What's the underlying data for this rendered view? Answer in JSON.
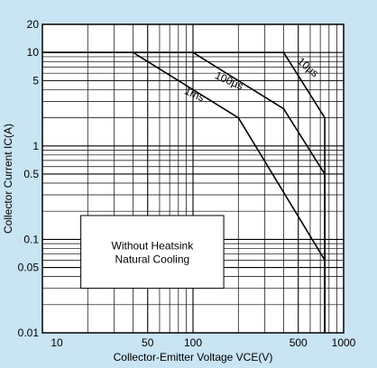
{
  "chart_data": {
    "type": "line",
    "xscale": "log",
    "yscale": "log",
    "xlim": [
      10,
      1000
    ],
    "ylim": [
      0.01,
      20
    ],
    "xlabel": "Collector-Emitter Voltage VCE(V)",
    "ylabel": "Collector Current IC(A)",
    "grid": true,
    "x_ticks": [
      {
        "value": 10,
        "label": "10"
      },
      {
        "value": 50,
        "label": "50"
      },
      {
        "value": 100,
        "label": "100"
      },
      {
        "value": 500,
        "label": "500"
      },
      {
        "value": 1000,
        "label": "1000"
      }
    ],
    "y_ticks": [
      {
        "value": 20,
        "label": "20"
      },
      {
        "value": 10,
        "label": "10"
      },
      {
        "value": 5,
        "label": "5"
      },
      {
        "value": 1,
        "label": "1"
      },
      {
        "value": 0.5,
        "label": "0.5"
      },
      {
        "value": 0.1,
        "label": "0.1"
      },
      {
        "value": 0.05,
        "label": "0.05"
      },
      {
        "value": 0.01,
        "label": "0.01"
      }
    ],
    "series": [
      {
        "name": "10µs",
        "points": [
          [
            10,
            10
          ],
          [
            400,
            10
          ],
          [
            750,
            2
          ],
          [
            750,
            0.01
          ]
        ]
      },
      {
        "name": "100µs",
        "points": [
          [
            10,
            10
          ],
          [
            100,
            10
          ],
          [
            400,
            2.5
          ],
          [
            750,
            0.5
          ],
          [
            750,
            0.01
          ]
        ]
      },
      {
        "name": "1ms",
        "points": [
          [
            10,
            10
          ],
          [
            40,
            10
          ],
          [
            200,
            2
          ],
          [
            750,
            0.06
          ],
          [
            750,
            0.01
          ]
        ]
      }
    ],
    "curve_labels": [
      {
        "text": "10µs",
        "x": 560,
        "y": 6.5,
        "angle": 40
      },
      {
        "text": "100µs",
        "x": 170,
        "y": 4.6,
        "angle": 24
      },
      {
        "text": "1ms",
        "x": 100,
        "y": 3.3,
        "angle": 24
      }
    ],
    "annotation": {
      "lines": [
        "Without Heatsink",
        "Natural Cooling"
      ],
      "x_range": [
        18,
        160
      ],
      "y_range": [
        0.03,
        0.18
      ]
    }
  }
}
